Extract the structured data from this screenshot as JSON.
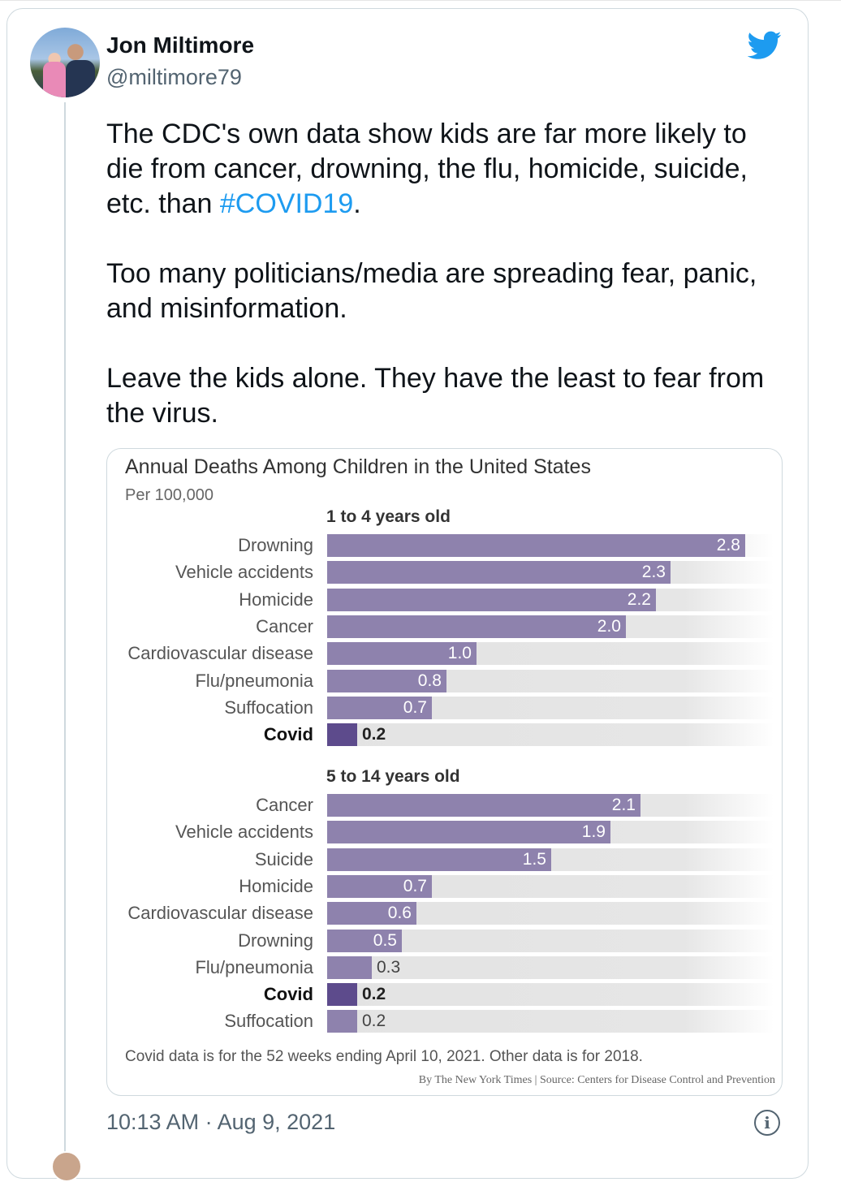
{
  "author": {
    "name": "Jon Miltimore",
    "handle": "@miltimore79"
  },
  "tweet": {
    "paragraph1_before": "The CDC's own data show kids are far more likely to die from cancer, drowning, the flu, homicide, suicide, etc. than ",
    "hashtag": "#COVID19",
    "paragraph1_after": ".",
    "paragraph2": "Too many politicians/media are spreading fear, panic, and misinformation.",
    "paragraph3": "Leave the kids alone. They have the least to fear from the virus."
  },
  "timestamp": "10:13 AM · Aug 9, 2021",
  "colors": {
    "bar": "#8e82ad",
    "highlight": "#5d4b8c",
    "hashtag": "#1d9bf0"
  },
  "chart_data": {
    "type": "bar",
    "title": "Annual Deaths Among Children in the United States",
    "subtitle": "Per 100,000",
    "xlim": [
      0,
      3.0
    ],
    "groups": [
      {
        "title": "1 to 4 years old",
        "categories": [
          "Drowning",
          "Vehicle accidents",
          "Homicide",
          "Cancer",
          "Cardiovascular disease",
          "Flu/pneumonia",
          "Suffocation",
          "Covid"
        ],
        "values": [
          2.8,
          2.3,
          2.2,
          2.0,
          1.0,
          0.8,
          0.7,
          0.2
        ],
        "labels": [
          "2.8",
          "2.3",
          "2.2",
          "2.0",
          "1.0",
          "0.8",
          "0.7",
          "0.2"
        ]
      },
      {
        "title": "5 to 14 years old",
        "categories": [
          "Cancer",
          "Vehicle accidents",
          "Suicide",
          "Homicide",
          "Cardiovascular disease",
          "Drowning",
          "Flu/pneumonia",
          "Covid",
          "Suffocation"
        ],
        "values": [
          2.1,
          1.9,
          1.5,
          0.7,
          0.6,
          0.5,
          0.3,
          0.2,
          0.2
        ],
        "labels": [
          "2.1",
          "1.9",
          "1.5",
          "0.7",
          "0.6",
          "0.5",
          "0.3",
          "0.2",
          "0.2"
        ]
      }
    ],
    "highlight": "Covid",
    "note": "Covid data is for the 52 weeks ending April 10, 2021. Other data is for 2018.",
    "source": "By The New York Times | Source: Centers for Disease Control and Prevention"
  }
}
